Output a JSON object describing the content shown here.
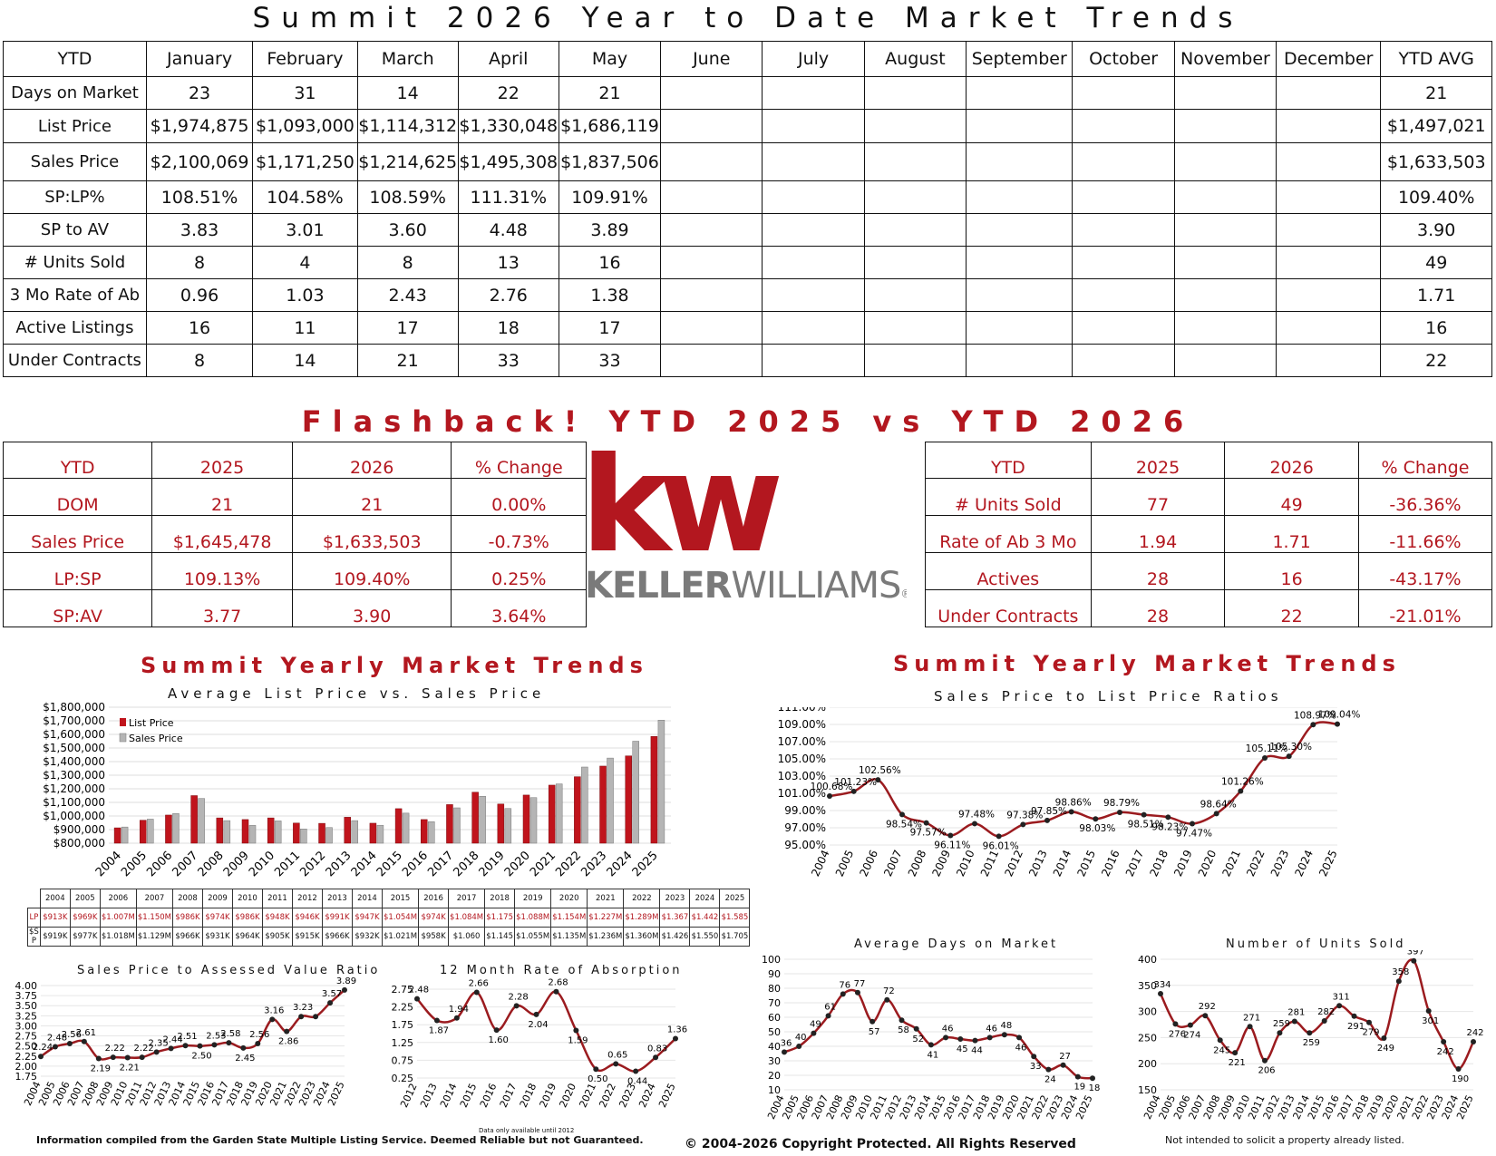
{
  "main_title": "Summit 2026 Year to Date Market Trends",
  "ytd_table": {
    "headers": [
      "YTD",
      "January",
      "February",
      "March",
      "April",
      "May",
      "June",
      "July",
      "August",
      "September",
      "October",
      "November",
      "December",
      "YTD AVG"
    ],
    "rows": [
      {
        "label": "Days on Market",
        "values": [
          "23",
          "31",
          "14",
          "22",
          "21",
          "",
          "",
          "",
          "",
          "",
          "",
          ""
        ],
        "avg": "21"
      },
      {
        "label": "List Price",
        "values": [
          "$1,974,875",
          "$1,093,000",
          "$1,114,312",
          "$1,330,048",
          "$1,686,119",
          "",
          "",
          "",
          "",
          "",
          "",
          ""
        ],
        "avg": "$1,497,021"
      },
      {
        "label": "Sales Price",
        "values": [
          "$2,100,069",
          "$1,171,250",
          "$1,214,625",
          "$1,495,308",
          "$1,837,506",
          "",
          "",
          "",
          "",
          "",
          "",
          ""
        ],
        "avg": "$1,633,503"
      },
      {
        "label": "SP:LP%",
        "values": [
          "108.51%",
          "104.58%",
          "108.59%",
          "111.31%",
          "109.91%",
          "",
          "",
          "",
          "",
          "",
          "",
          ""
        ],
        "avg": "109.40%"
      },
      {
        "label": "SP to AV",
        "values": [
          "3.83",
          "3.01",
          "3.60",
          "4.48",
          "3.89",
          "",
          "",
          "",
          "",
          "",
          "",
          ""
        ],
        "avg": "3.90"
      },
      {
        "label": "# Units Sold",
        "values": [
          "8",
          "4",
          "8",
          "13",
          "16",
          "",
          "",
          "",
          "",
          "",
          "",
          ""
        ],
        "avg": "49"
      },
      {
        "label": "3 Mo Rate of Ab",
        "values": [
          "0.96",
          "1.03",
          "2.43",
          "2.76",
          "1.38",
          "",
          "",
          "",
          "",
          "",
          "",
          ""
        ],
        "avg": "1.71"
      },
      {
        "label": "Active Listings",
        "values": [
          "16",
          "11",
          "17",
          "18",
          "17",
          "",
          "",
          "",
          "",
          "",
          "",
          ""
        ],
        "avg": "16"
      },
      {
        "label": "Under Contracts",
        "values": [
          "8",
          "14",
          "21",
          "33",
          "33",
          "",
          "",
          "",
          "",
          "",
          "",
          ""
        ],
        "avg": "22"
      }
    ]
  },
  "flashback_title": "Flashback!  YTD 2025 vs YTD 2026",
  "compare_left": {
    "headers": [
      "YTD",
      "2025",
      "2026",
      "% Change"
    ],
    "rows": [
      [
        "DOM",
        "21",
        "21",
        "0.00%"
      ],
      [
        "Sales Price",
        "$1,645,478",
        "$1,633,503",
        "-0.73%"
      ],
      [
        "LP:SP",
        "109.13%",
        "109.40%",
        "0.25%"
      ],
      [
        "SP:AV",
        "3.77",
        "3.90",
        "3.64%"
      ]
    ]
  },
  "compare_right": {
    "headers": [
      "YTD",
      "2025",
      "2026",
      "% Change"
    ],
    "rows": [
      [
        "# Units Sold",
        "77",
        "49",
        "-36.36%"
      ],
      [
        "Rate of Ab 3 Mo",
        "1.94",
        "1.71",
        "-11.66%"
      ],
      [
        "Actives",
        "28",
        "16",
        "-43.17%"
      ],
      [
        "Under Contracts",
        "28",
        "22",
        "-21.01%"
      ]
    ]
  },
  "logo": {
    "kw": "kw",
    "brand_bold": "KELLER",
    "brand_light": "WILLIAMS",
    "reg": "®",
    "color": "#b3171f"
  },
  "left_section_title": "Summit Yearly Market Trends",
  "right_section_title": "Summit Yearly Market Trends",
  "colors": {
    "accent": "#b3171f",
    "list_bar": "#c0141c",
    "sales_bar": "#b5b5b5"
  },
  "chart_data": [
    {
      "type": "bar",
      "title": "Average List Price vs. Sales Price",
      "categories": [
        "2004",
        "2005",
        "2006",
        "2007",
        "2008",
        "2009",
        "2010",
        "2011",
        "2012",
        "2013",
        "2014",
        "2015",
        "2016",
        "2017",
        "2018",
        "2019",
        "2020",
        "2021",
        "2022",
        "2023",
        "2024",
        "2025"
      ],
      "series": [
        {
          "name": "List Price",
          "values": [
            913000,
            969000,
            1007000,
            1150000,
            986000,
            974000,
            986000,
            948000,
            946000,
            991000,
            947000,
            1054000,
            974000,
            1084000,
            1175000,
            1088000,
            1154000,
            1227000,
            1289000,
            1367000,
            1442000,
            1585000
          ]
        },
        {
          "name": "Sales Price",
          "values": [
            919000,
            977000,
            1018000,
            1129000,
            966000,
            931000,
            964000,
            905000,
            915000,
            966000,
            932000,
            1021000,
            958000,
            1060000,
            1145000,
            1055000,
            1135000,
            1236000,
            1360000,
            1426000,
            1550000,
            1705000
          ]
        }
      ],
      "y_tick_labels": [
        "$800,000",
        "$900,000",
        "$1,000,000",
        "$1,100,000",
        "$1,200,000",
        "$1,300,000",
        "$1,400,000",
        "$1,500,000",
        "$1,600,000",
        "$1,700,000",
        "$1,800,000"
      ],
      "ylim": [
        800000,
        1800000
      ],
      "legend": "top-left",
      "table": {
        "years": [
          "2004",
          "2005",
          "2006",
          "2007",
          "2008",
          "2009",
          "2010",
          "2011",
          "2012",
          "2013",
          "2014",
          "2015",
          "2016",
          "2017",
          "2018",
          "2019",
          "2020",
          "2021",
          "2022",
          "2023",
          "2024",
          "2025"
        ],
        "lp_label": "LP",
        "sp_label": "$S P",
        "lp": [
          "$913K",
          "$969K",
          "$1.007M",
          "$1.150M",
          "$986K",
          "$974K",
          "$986K",
          "$948K",
          "$946K",
          "$991K",
          "$947K",
          "$1.054M",
          "$974K",
          "$1.084M",
          "$1.175",
          "$1.088M",
          "$1.154M",
          "$1.227M",
          "$1.289M",
          "$1.367",
          "$1.442",
          "$1.585"
        ],
        "sp": [
          "$919K",
          "$977K",
          "$1.018M",
          "$1.129M",
          "$966K",
          "$931K",
          "$964K",
          "$905K",
          "$915K",
          "$966K",
          "$932K",
          "$1.021M",
          "$958K",
          "$1.060",
          "$1.145",
          "$1.055M",
          "$1.135M",
          "$1.236M",
          "$1.360M",
          "$1.426",
          "$1.550",
          "$1.705"
        ]
      }
    },
    {
      "type": "line",
      "title": "Sales Price to List Price Ratios",
      "x": [
        "2004",
        "2005",
        "2006",
        "2007",
        "2008",
        "2009",
        "2010",
        "2011",
        "2012",
        "2013",
        "2014",
        "2015",
        "2016",
        "2017",
        "2018",
        "2019",
        "2020",
        "2021",
        "2022",
        "2023",
        "2024",
        "2025"
      ],
      "values": [
        100.68,
        101.23,
        102.56,
        98.54,
        97.57,
        96.11,
        97.48,
        96.01,
        97.38,
        97.85,
        98.86,
        98.03,
        98.79,
        98.51,
        98.23,
        97.47,
        98.64,
        101.26,
        105.11,
        105.3,
        108.97,
        109.04
      ],
      "labels": [
        "100.68%",
        "101.23%",
        "102.56%",
        "98.54%",
        "97.57%",
        "96.11%",
        "97.48%",
        "96.01%",
        "97.38%",
        "97.85%",
        "98.86%",
        "98.03%",
        "98.79%",
        "98.51%",
        "98.23%",
        "97.47%",
        "98.64%",
        "101.26%",
        "105.11%",
        "105.30%",
        "108.97%",
        "109.04%"
      ],
      "y_tick_labels": [
        "95.00%",
        "97.00%",
        "99.00%",
        "101.00%",
        "103.00%",
        "105.00%",
        "107.00%",
        "109.00%",
        "111.00%"
      ],
      "ylim": [
        95,
        111
      ]
    },
    {
      "type": "line",
      "title": "Sales Price to Assessed Value Ratio",
      "x": [
        "2004",
        "2005",
        "2006",
        "2007",
        "2008",
        "2009",
        "2010",
        "2011",
        "2012",
        "2013",
        "2014",
        "2015",
        "2016",
        "2017",
        "2018",
        "2019",
        "2020",
        "2021",
        "2022",
        "2023",
        "2024",
        "2025"
      ],
      "values": [
        2.24,
        2.48,
        2.56,
        2.61,
        2.19,
        2.22,
        2.21,
        2.22,
        2.35,
        2.44,
        2.51,
        2.5,
        2.53,
        2.58,
        2.45,
        2.56,
        3.16,
        2.86,
        3.23,
        3.23,
        3.57,
        3.89
      ],
      "labels": [
        "2.24",
        "2.48",
        "2.56",
        "2.61",
        "2.19",
        "2.22",
        "2.21",
        "2.22",
        "2.35",
        "2.44",
        "2.51",
        "2.50",
        "2.53",
        "2.58",
        "2.45",
        "2.56",
        "3.16",
        "2.86",
        "3.23",
        "",
        "3.57",
        "3.89"
      ],
      "y_tick_labels": [
        "1.75",
        "2.00",
        "2.25",
        "2.50",
        "2.75",
        "3.00",
        "3.25",
        "3.50",
        "3.75",
        "4.00"
      ],
      "ylim": [
        1.75,
        4.0
      ]
    },
    {
      "type": "line",
      "title": "12 Month Rate of Absorption",
      "x": [
        "2012",
        "2013",
        "2014",
        "2015",
        "2016",
        "2017",
        "2018",
        "2019",
        "2020",
        "2021",
        "2022",
        "2023",
        "2024",
        "2025"
      ],
      "values": [
        2.48,
        1.87,
        1.94,
        2.66,
        1.6,
        2.28,
        2.04,
        2.68,
        1.59,
        0.5,
        0.65,
        0.44,
        0.83,
        1.36
      ],
      "labels": [
        "2.48",
        "1.87",
        "1.94",
        "2.66",
        "1.60",
        "2.28",
        "2.04",
        "2.68",
        "1.59",
        "0.50",
        "0.65",
        "0.44",
        "0.83",
        "1.36"
      ],
      "y_tick_labels": [
        "0.25",
        "0.75",
        "1.25",
        "1.75",
        "2.25",
        "2.75"
      ],
      "ylim": [
        0.25,
        2.75
      ],
      "note": "Data only available until 2012"
    },
    {
      "type": "line",
      "title": "Average Days on Market",
      "x": [
        "2004",
        "2005",
        "2006",
        "2007",
        "2008",
        "2009",
        "2010",
        "2011",
        "2012",
        "2013",
        "2014",
        "2015",
        "2016",
        "2017",
        "2018",
        "2019",
        "2020",
        "2021",
        "2022",
        "2023",
        "2024",
        "2025"
      ],
      "values": [
        36,
        40,
        49,
        61,
        76,
        77,
        57,
        72,
        58,
        52,
        41,
        46,
        45,
        44,
        46,
        48,
        46,
        33,
        24,
        27,
        19,
        18
      ],
      "labels": [
        "36",
        "40",
        "49",
        "61",
        "76",
        "77",
        "57",
        "72",
        "58",
        "52",
        "41",
        "46",
        "45",
        "44",
        "46",
        "48",
        "46",
        "33",
        "24",
        "27",
        "19",
        "18"
      ],
      "y_tick_labels": [
        "10",
        "20",
        "30",
        "40",
        "50",
        "60",
        "70",
        "80",
        "90",
        "100"
      ],
      "ylim": [
        10,
        100
      ]
    },
    {
      "type": "line",
      "title": "Number of Units Sold",
      "x": [
        "2004",
        "2005",
        "2006",
        "2007",
        "2008",
        "2009",
        "2010",
        "2011",
        "2012",
        "2013",
        "2014",
        "2015",
        "2016",
        "2017",
        "2018",
        "2019",
        "2020",
        "2021",
        "2022",
        "2023",
        "2024",
        "2025"
      ],
      "values": [
        334,
        276,
        274,
        292,
        245,
        221,
        271,
        206,
        259,
        281,
        259,
        282,
        311,
        291,
        279,
        249,
        358,
        397,
        301,
        242,
        190,
        242
      ],
      "labels": [
        "334",
        "276",
        "274",
        "292",
        "245",
        "221",
        "271",
        "206",
        "259",
        "281",
        "259",
        "282",
        "311",
        "291",
        "279",
        "249",
        "358",
        "397",
        "301",
        "242",
        "190",
        "242"
      ],
      "y_tick_labels": [
        "150",
        "200",
        "250",
        "300",
        "350",
        "400"
      ],
      "ylim": [
        150,
        400
      ]
    }
  ],
  "footer": {
    "left": "Information compiled from the Garden State Multiple Listing Service.  Deemed Reliable but not Guaranteed.",
    "center": "© 2004-2026 Copyright Protected.  All Rights Reserved",
    "right": "Not intended to solicit a property already listed."
  }
}
